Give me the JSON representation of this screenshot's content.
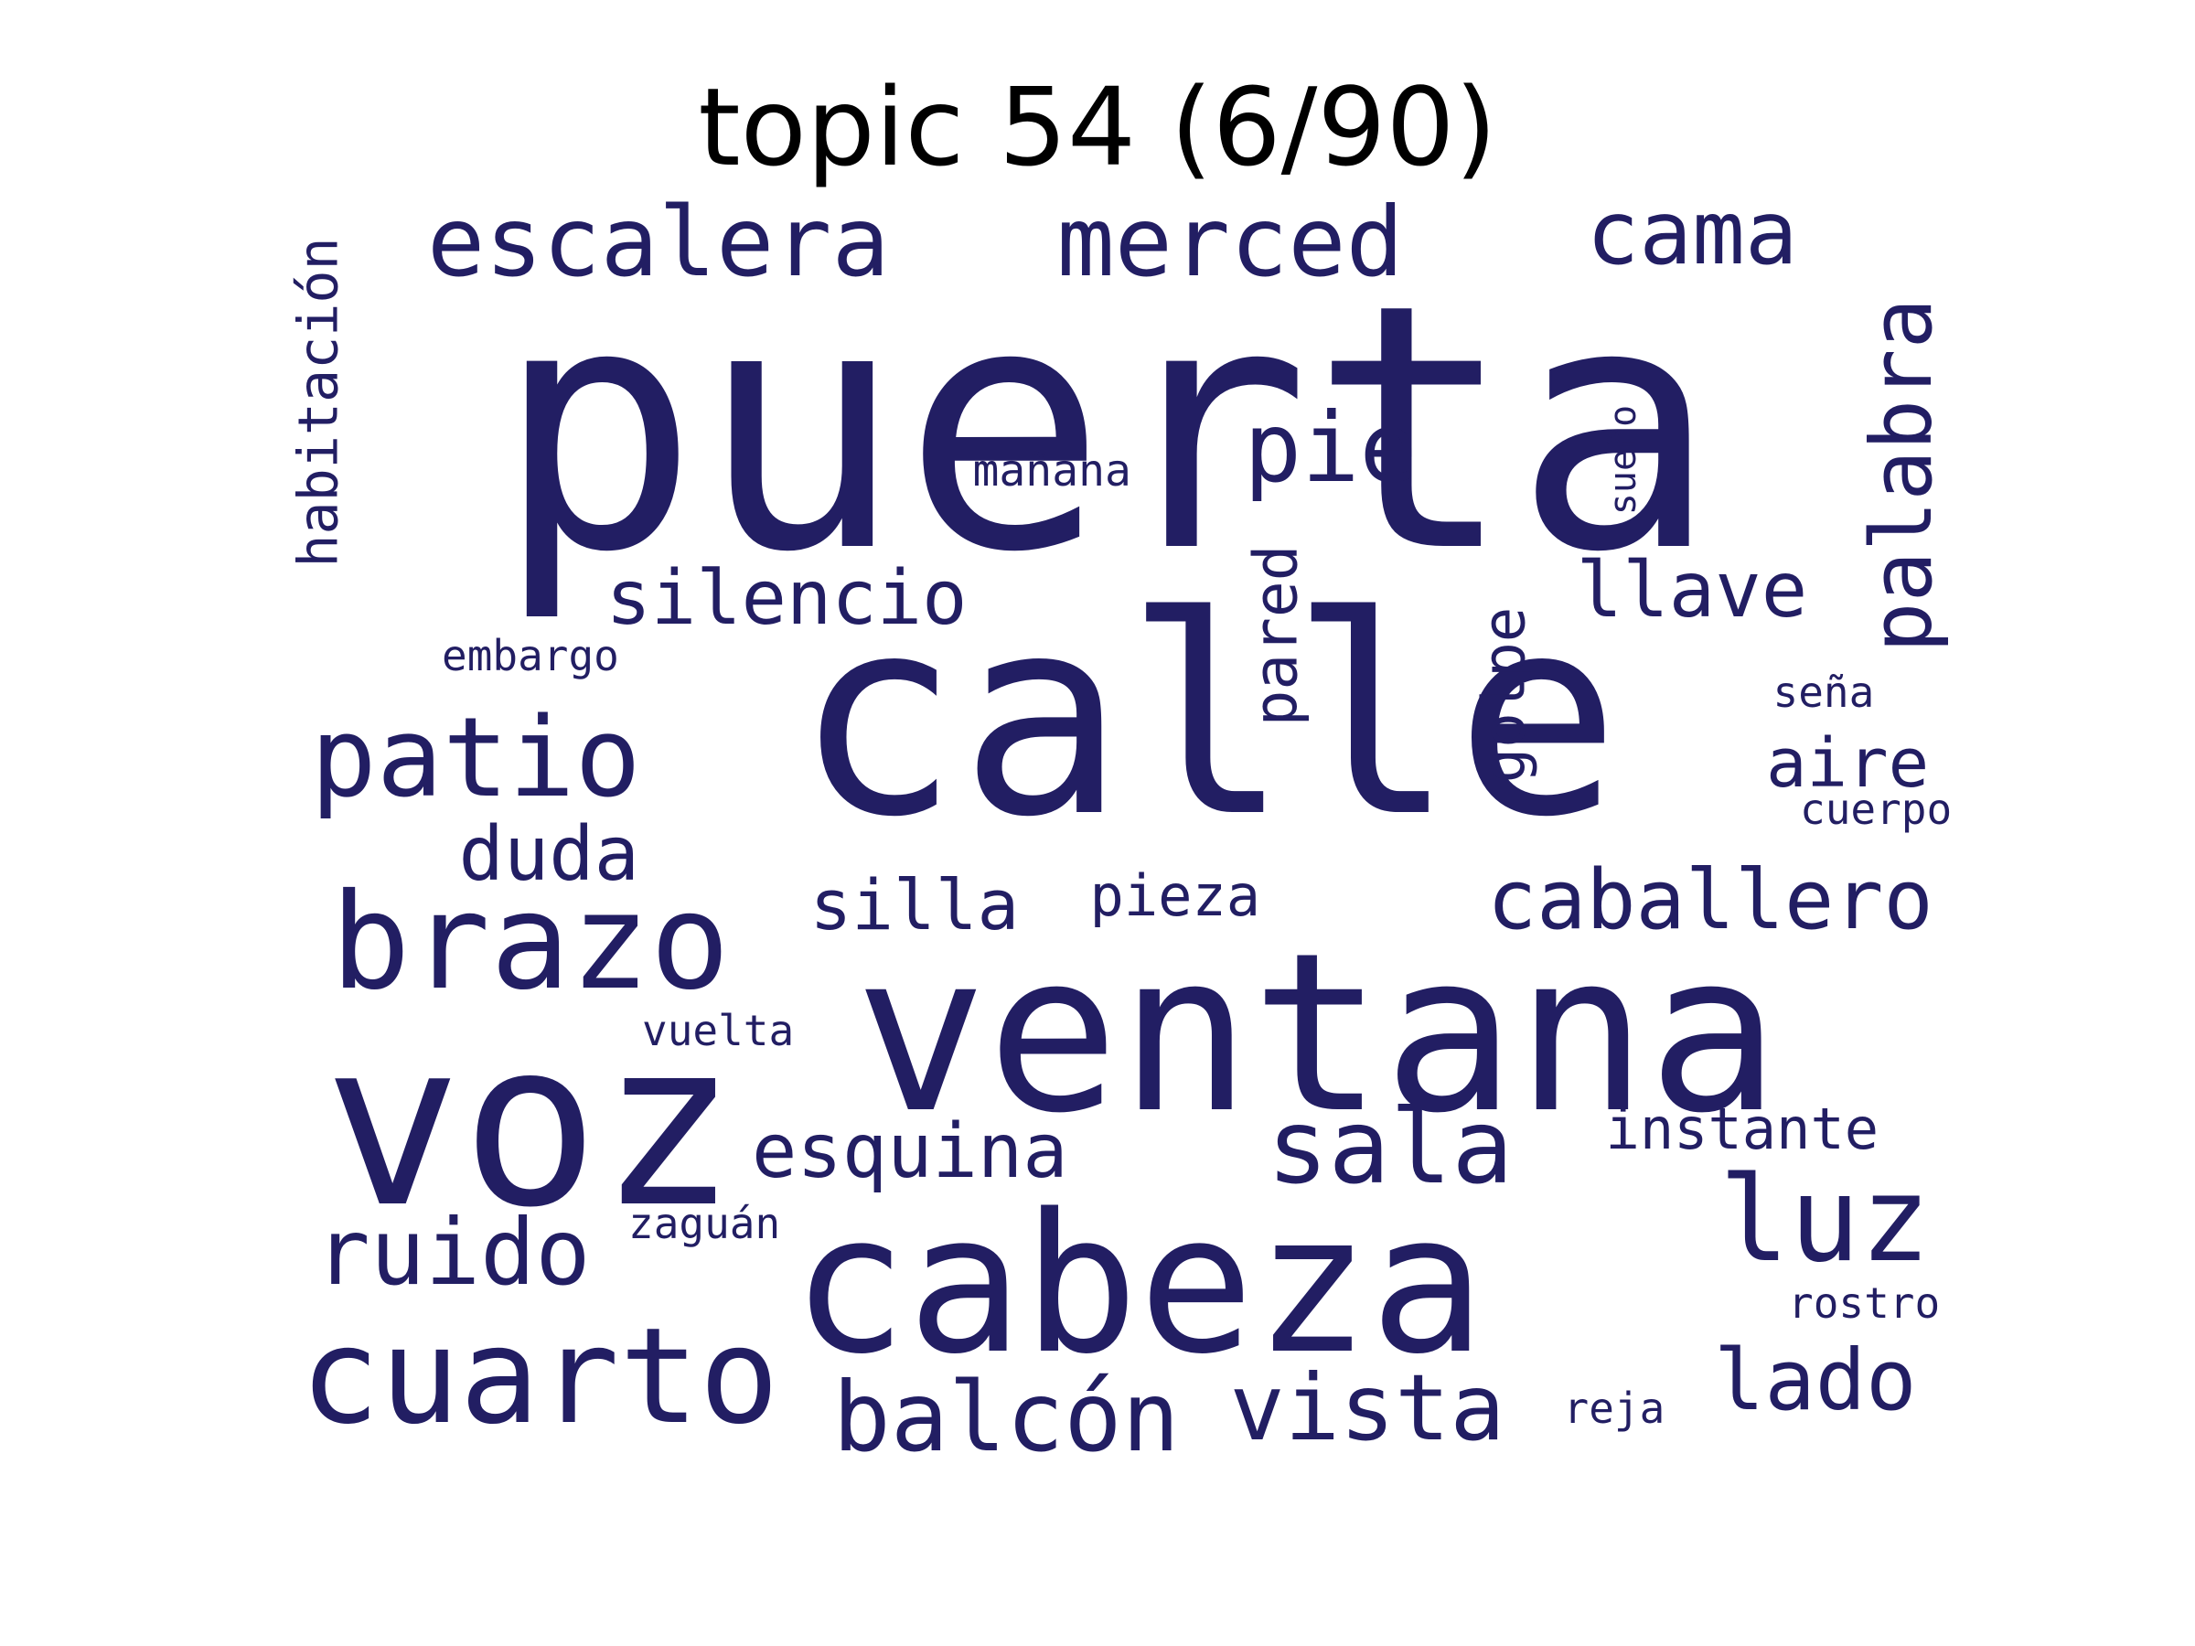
{
  "title": "topic 54 (6/90)",
  "word_color": "#221E63",
  "words": [
    {
      "text": "puerta",
      "vertical": false
    },
    {
      "text": "calle",
      "vertical": false
    },
    {
      "text": "ventana",
      "vertical": false
    },
    {
      "text": "cabeza",
      "vertical": false
    },
    {
      "text": "voz",
      "vertical": false
    },
    {
      "text": "cuarto",
      "vertical": false
    },
    {
      "text": "brazo",
      "vertical": false
    },
    {
      "text": "patio",
      "vertical": false
    },
    {
      "text": "sala",
      "vertical": false
    },
    {
      "text": "luz",
      "vertical": false
    },
    {
      "text": "escalera",
      "vertical": false
    },
    {
      "text": "merced",
      "vertical": false
    },
    {
      "text": "palabra",
      "vertical": true
    },
    {
      "text": "pie",
      "vertical": false
    },
    {
      "text": "cama",
      "vertical": false
    },
    {
      "text": "ruido",
      "vertical": false
    },
    {
      "text": "vista",
      "vertical": false
    },
    {
      "text": "balcón",
      "vertical": false
    },
    {
      "text": "lado",
      "vertical": false
    },
    {
      "text": "caballero",
      "vertical": false
    },
    {
      "text": "esquina",
      "vertical": false
    },
    {
      "text": "silencio",
      "vertical": false
    },
    {
      "text": "duda",
      "vertical": false
    },
    {
      "text": "llave",
      "vertical": false
    },
    {
      "text": "pared",
      "vertical": true
    },
    {
      "text": "silla",
      "vertical": false
    },
    {
      "text": "habitación",
      "vertical": true
    },
    {
      "text": "golpe",
      "vertical": true
    },
    {
      "text": "aire",
      "vertical": false
    },
    {
      "text": "instante",
      "vertical": false
    },
    {
      "text": "pieza",
      "vertical": false
    },
    {
      "text": "mañana",
      "vertical": false
    },
    {
      "text": "sueño",
      "vertical": true
    },
    {
      "text": "embargo",
      "vertical": false
    },
    {
      "text": "vuelta",
      "vertical": false
    },
    {
      "text": "zaguán",
      "vertical": false
    },
    {
      "text": "seña",
      "vertical": false
    },
    {
      "text": "cuerpo",
      "vertical": false
    },
    {
      "text": "rostro",
      "vertical": false
    },
    {
      "text": "reja",
      "vertical": false
    }
  ]
}
